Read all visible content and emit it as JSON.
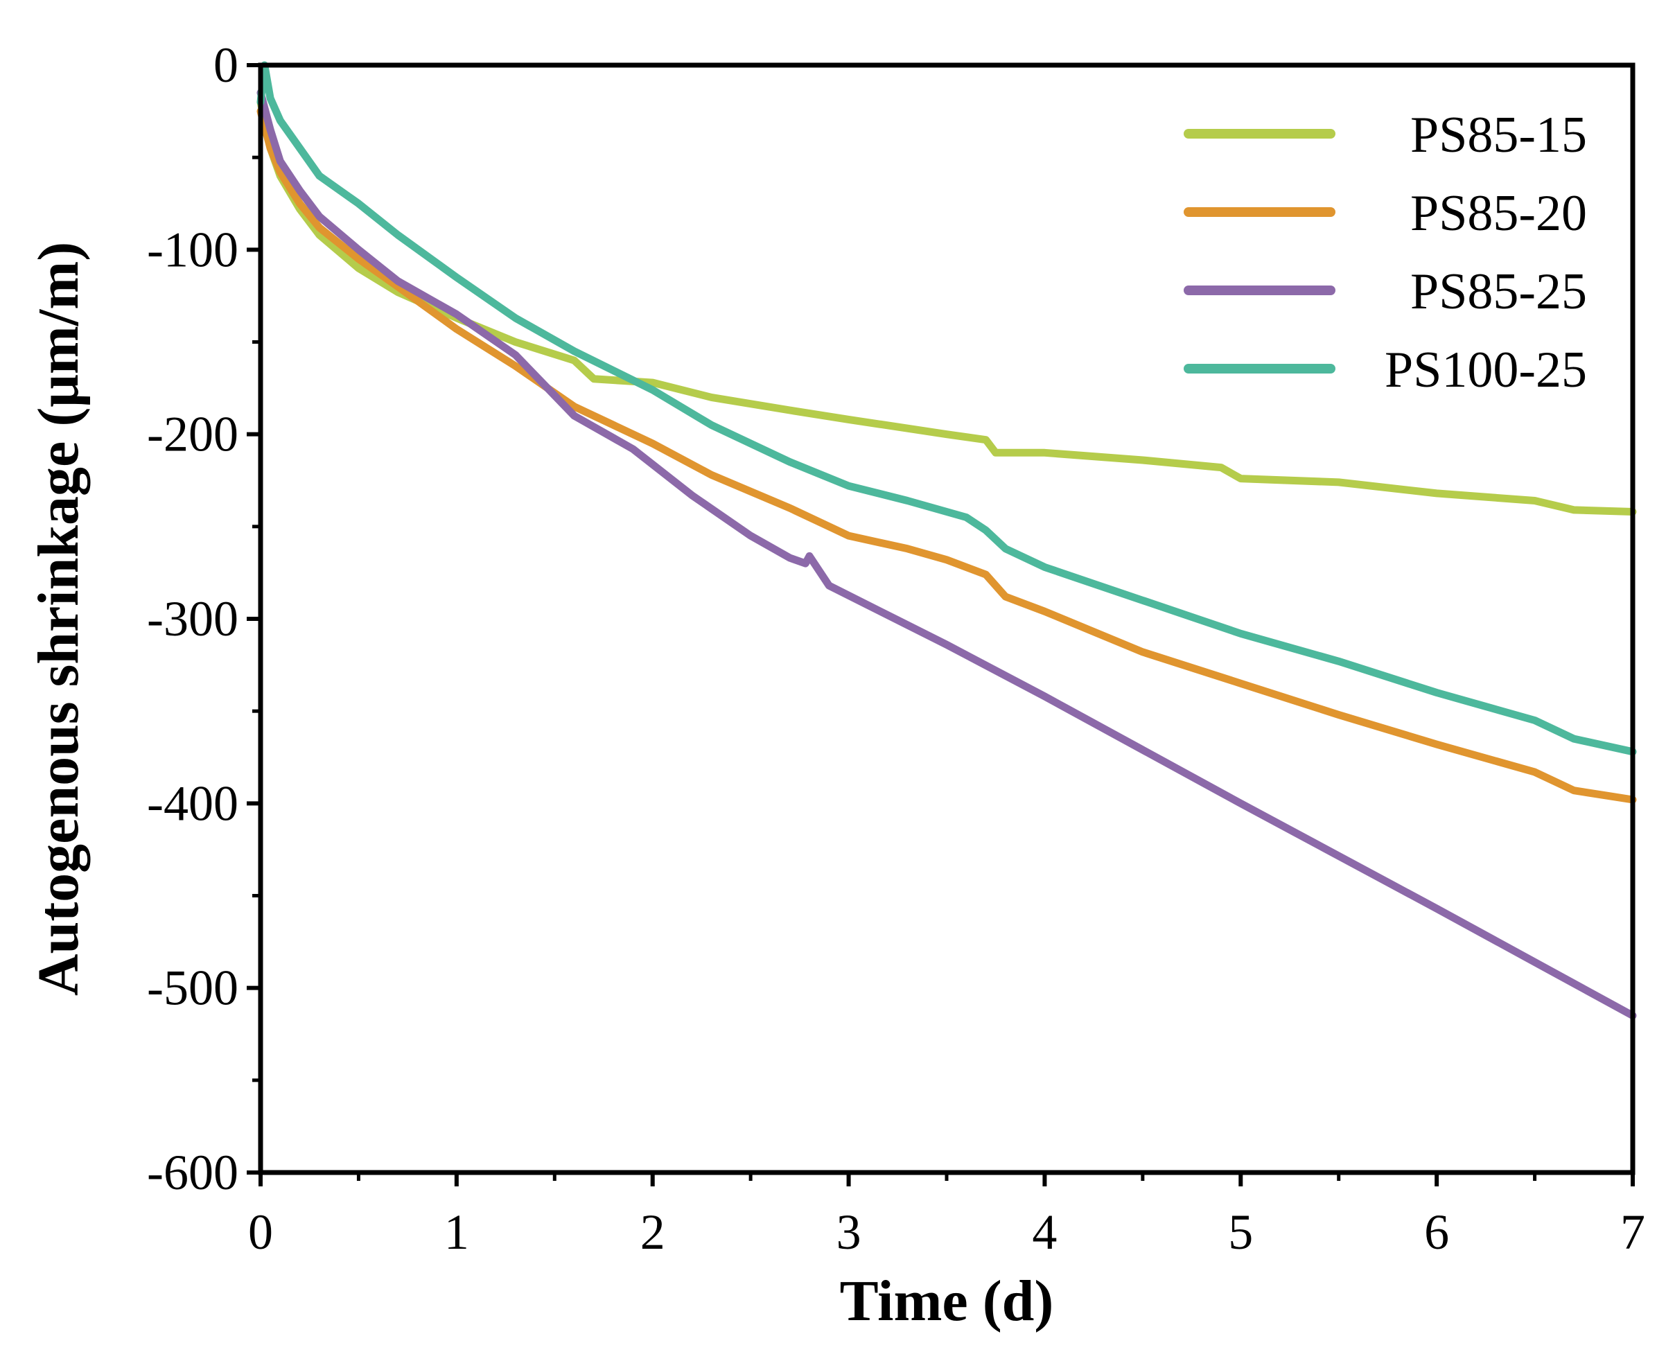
{
  "chart_data": {
    "type": "line",
    "title": "",
    "xlabel": "Time (d)",
    "ylabel": "Autogenous shrinkage (μm/m)",
    "xlim": [
      0,
      7
    ],
    "ylim": [
      -600,
      0
    ],
    "xticks": [
      "0",
      "1",
      "2",
      "3",
      "4",
      "5",
      "6",
      "7"
    ],
    "yticks": [
      "0",
      "-100",
      "-200",
      "-300",
      "-400",
      "-500",
      "-600"
    ],
    "legend_position": "top-right",
    "series": [
      {
        "name": "PS85-15",
        "color": "#b5cc4b",
        "x": [
          0.0,
          0.05,
          0.1,
          0.2,
          0.3,
          0.5,
          0.7,
          1.0,
          1.3,
          1.6,
          1.7,
          2.0,
          2.3,
          2.7,
          3.0,
          3.5,
          3.7,
          3.75,
          4.0,
          4.5,
          4.9,
          5.0,
          5.5,
          6.0,
          6.5,
          6.7,
          7.0
        ],
        "y": [
          -20,
          -45,
          -60,
          -78,
          -92,
          -110,
          -123,
          -137,
          -150,
          -160,
          -170,
          -172,
          -180,
          -187,
          -192,
          -200,
          -203,
          -210,
          -210,
          -214,
          -218,
          -224,
          -226,
          -232,
          -236,
          -241,
          -242
        ]
      },
      {
        "name": "PS85-20",
        "color": "#e0952f",
        "x": [
          0.0,
          0.05,
          0.1,
          0.2,
          0.3,
          0.5,
          0.7,
          1.0,
          1.3,
          1.6,
          2.0,
          2.3,
          2.7,
          3.0,
          3.3,
          3.5,
          3.7,
          3.8,
          4.0,
          4.5,
          5.0,
          5.5,
          6.0,
          6.5,
          6.7,
          7.0
        ],
        "y": [
          -25,
          -45,
          -58,
          -75,
          -88,
          -105,
          -120,
          -143,
          -163,
          -185,
          -205,
          -222,
          -240,
          -255,
          -262,
          -268,
          -276,
          -288,
          -296,
          -318,
          -335,
          -352,
          -368,
          -383,
          -393,
          -398
        ]
      },
      {
        "name": "PS85-25",
        "color": "#8c69a9",
        "x": [
          0.0,
          0.05,
          0.1,
          0.2,
          0.3,
          0.5,
          0.7,
          1.0,
          1.3,
          1.6,
          1.9,
          2.2,
          2.5,
          2.7,
          2.78,
          2.8,
          2.9,
          3.5,
          4.0,
          5.0,
          6.0,
          7.0
        ],
        "y": [
          -15,
          -35,
          -52,
          -68,
          -82,
          -100,
          -117,
          -135,
          -157,
          -190,
          -208,
          -233,
          -255,
          -267,
          -270,
          -266,
          -282,
          -314,
          -342,
          -400,
          -457,
          -515
        ]
      },
      {
        "name": "PS100-25",
        "color": "#4db89c",
        "x": [
          0.0,
          0.02,
          0.05,
          0.1,
          0.2,
          0.3,
          0.5,
          0.7,
          1.0,
          1.3,
          1.6,
          2.0,
          2.3,
          2.7,
          3.0,
          3.3,
          3.6,
          3.7,
          3.8,
          4.0,
          4.5,
          5.0,
          5.5,
          6.0,
          6.5,
          6.7,
          7.0
        ],
        "y": [
          -20,
          0,
          -18,
          -30,
          -45,
          -60,
          -75,
          -92,
          -115,
          -137,
          -155,
          -176,
          -195,
          -215,
          -228,
          -236,
          -245,
          -252,
          -262,
          -272,
          -290,
          -308,
          -323,
          -340,
          -355,
          -365,
          -372
        ]
      }
    ]
  }
}
